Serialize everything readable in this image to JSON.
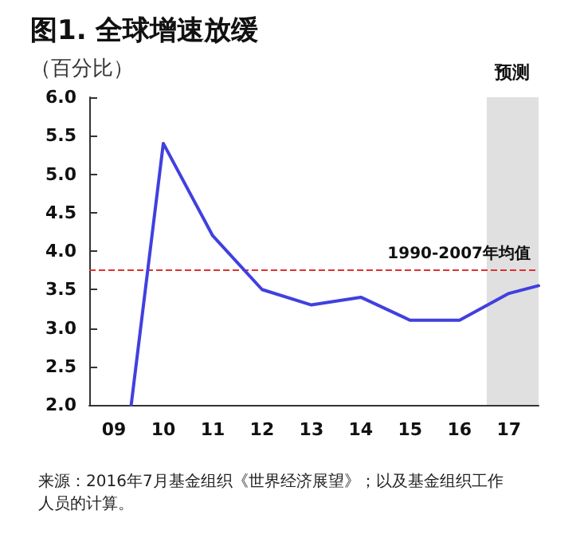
{
  "chart_data": {
    "type": "line",
    "title": "图1. 全球增速放缓",
    "subtitle": "（百分比）",
    "x": [
      2009.35,
      2010,
      2011,
      2012,
      2013,
      2014,
      2015,
      2016,
      2017,
      2017.6
    ],
    "series": [
      {
        "color": "#4040e0",
        "values": [
          2.0,
          5.4,
          4.2,
          3.5,
          3.3,
          3.4,
          3.1,
          3.1,
          3.45,
          3.55
        ]
      }
    ],
    "xlim": [
      2008.5,
      2017.6
    ],
    "xticks": [
      {
        "value": 2009,
        "label": "09"
      },
      {
        "value": 2010,
        "label": "10"
      },
      {
        "value": 2011,
        "label": "11"
      },
      {
        "value": 2012,
        "label": "12"
      },
      {
        "value": 2013,
        "label": "13"
      },
      {
        "value": 2014,
        "label": "14"
      },
      {
        "value": 2015,
        "label": "15"
      },
      {
        "value": 2016,
        "label": "16"
      },
      {
        "value": 2017,
        "label": "17"
      }
    ],
    "ylim": [
      2.0,
      6.0
    ],
    "yticks": [
      {
        "value": 2.0,
        "label": "2.0"
      },
      {
        "value": 2.5,
        "label": "2.5"
      },
      {
        "value": 3.0,
        "label": "3.0"
      },
      {
        "value": 3.5,
        "label": "3.5"
      },
      {
        "value": 4.0,
        "label": "4.0"
      },
      {
        "value": 4.5,
        "label": "4.5"
      },
      {
        "value": 5.0,
        "label": "5.0"
      },
      {
        "value": 5.5,
        "label": "5.5"
      },
      {
        "value": 6.0,
        "label": "6.0"
      }
    ],
    "ref_lines": [
      {
        "axis": "y",
        "value": 3.75,
        "label": "1990-2007年均值",
        "color": "#e03030",
        "line_style": "dashed"
      }
    ],
    "bands": [
      {
        "axis": "x",
        "from": 2016.55,
        "to": 2017.6,
        "label": "预测",
        "color": "#e0e0e0"
      }
    ],
    "annotations": [
      "来源：2016年7月基金组织《世界经济展望》；以及基金组织工作人员的计算。"
    ],
    "grid": false,
    "marker": "none",
    "line_style": "solid"
  }
}
